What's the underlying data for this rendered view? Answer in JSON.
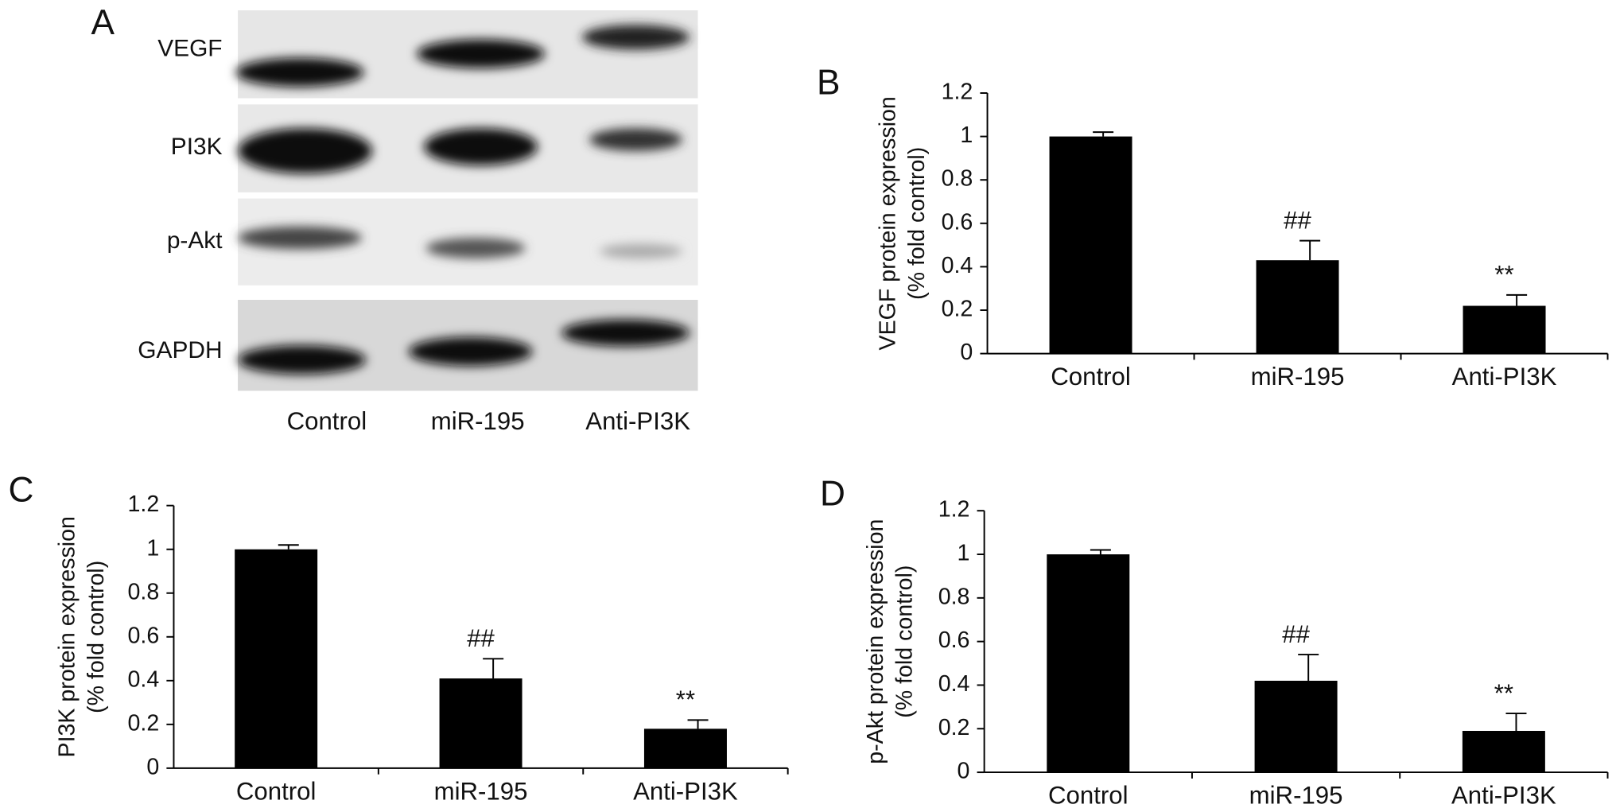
{
  "blot": {
    "label": "A",
    "rows": [
      "VEGF",
      "PI3K",
      "p-Akt",
      "GAPDH"
    ],
    "lanes": [
      "Control",
      "miR-195",
      "Anti-PI3K"
    ]
  },
  "chart_data": [
    {
      "type": "bar",
      "panel_label": "B",
      "ylabel": [
        "VEGF protein expression",
        "(% fold control)"
      ],
      "categories": [
        "Control",
        "miR-195",
        "Anti-PI3K"
      ],
      "values": [
        1.0,
        0.43,
        0.22
      ],
      "errors": [
        0.02,
        0.09,
        0.05
      ],
      "markers": [
        null,
        "##",
        "**"
      ],
      "color": "#000000",
      "ylim": [
        0,
        1.2
      ],
      "yticks": [
        0,
        0.2,
        0.4,
        0.6,
        0.8,
        1,
        1.2
      ]
    },
    {
      "type": "bar",
      "panel_label": "C",
      "ylabel": [
        "PI3K protein expression",
        "(% fold control)"
      ],
      "categories": [
        "Control",
        "miR-195",
        "Anti-PI3K"
      ],
      "values": [
        1.0,
        0.41,
        0.18
      ],
      "errors": [
        0.02,
        0.09,
        0.04
      ],
      "markers": [
        null,
        "##",
        "**"
      ],
      "color": "#000000",
      "ylim": [
        0,
        1.2
      ],
      "yticks": [
        0,
        0.2,
        0.4,
        0.6,
        0.8,
        1,
        1.2
      ]
    },
    {
      "type": "bar",
      "panel_label": "D",
      "ylabel": [
        "p-Akt protein expression",
        "(% fold control)"
      ],
      "categories": [
        "Control",
        "miR-195",
        "Anti-PI3K"
      ],
      "values": [
        1.0,
        0.42,
        0.19
      ],
      "errors": [
        0.02,
        0.12,
        0.08
      ],
      "markers": [
        null,
        "##",
        "**"
      ],
      "color": "#000000",
      "ylim": [
        0,
        1.2
      ],
      "yticks": [
        0,
        0.2,
        0.4,
        0.6,
        0.8,
        1,
        1.2
      ]
    }
  ]
}
